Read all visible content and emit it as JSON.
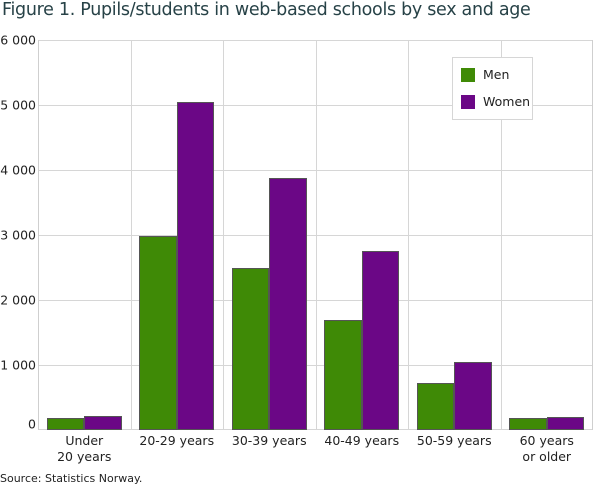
{
  "title": "Figure 1. Pupils/students in web-based schools by sex and age",
  "source": "Source: Statistics Norway.",
  "colors": {
    "men": "#3f8a06",
    "women": "#6b0786",
    "grid": "#d6d6d6"
  },
  "y_ticks": [
    "0",
    "1 000",
    "2 000",
    "3 000",
    "4 000",
    "5 000",
    "6 000"
  ],
  "legend": [
    {
      "label": "Men",
      "color": "#3f8a06"
    },
    {
      "label": "Women",
      "color": "#6b0786"
    }
  ],
  "chart_data": {
    "type": "bar",
    "title": "Figure 1. Pupils/students in web-based schools by sex and age",
    "xlabel": "",
    "ylabel": "",
    "categories": [
      "Under\n20 years",
      "20-29 years",
      "30-39 years",
      "40-49 years",
      "50-59 years",
      "60 years\nor older"
    ],
    "series": [
      {
        "name": "Men",
        "values": [
          180,
          2990,
          2490,
          1700,
          730,
          180
        ]
      },
      {
        "name": "Women",
        "values": [
          210,
          5050,
          3870,
          2760,
          1050,
          200
        ]
      }
    ],
    "ylim": [
      0,
      6000
    ],
    "yticks": [
      0,
      1000,
      2000,
      3000,
      4000,
      5000,
      6000
    ],
    "grid": true,
    "legend_position": "top-right inside",
    "source": "Source: Statistics Norway."
  }
}
